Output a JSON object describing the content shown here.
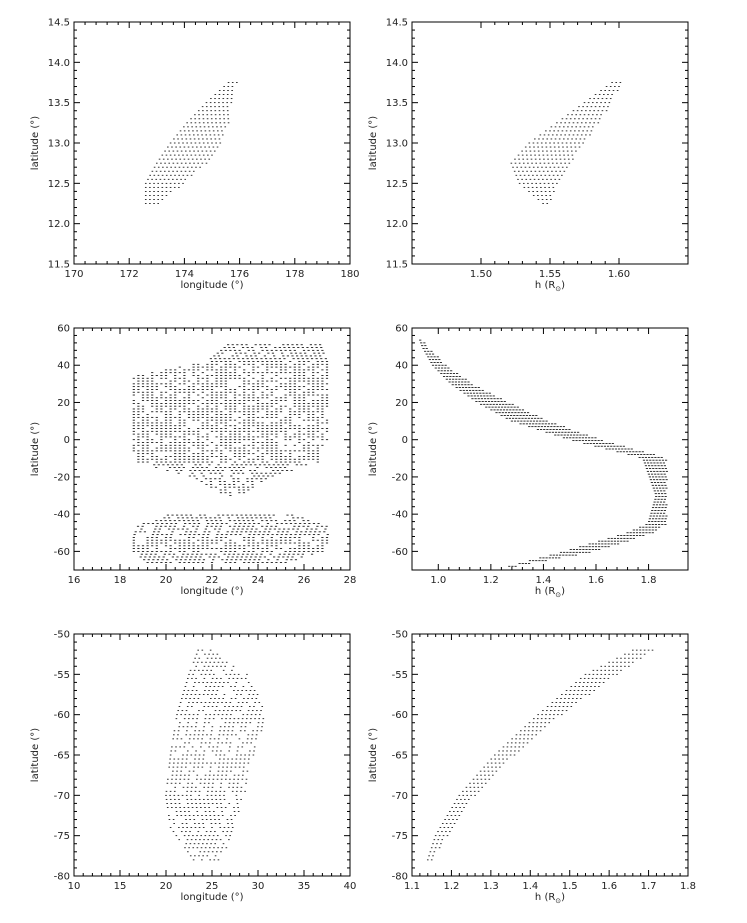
{
  "chart_data": [
    {
      "type": "scatter",
      "xlabel": "longitude (°)",
      "ylabel": "latitude (°)",
      "xlim": [
        170,
        180
      ],
      "ylim": [
        11.5,
        14.5
      ],
      "xticks": [
        "170",
        "172",
        "174",
        "176",
        "178",
        "180"
      ],
      "yticks": [
        "11.5",
        "12.0",
        "12.5",
        "13.0",
        "13.5",
        "14.0",
        "14.5"
      ],
      "series": [
        {
          "shape": "band",
          "ys": [
            12.25,
            12.5,
            12.75,
            13.0,
            13.25,
            13.5,
            13.75
          ],
          "xmins": [
            172.6,
            172.6,
            173.0,
            173.5,
            174.1,
            174.8,
            175.6
          ],
          "xmaxs": [
            173.1,
            174.0,
            174.8,
            175.3,
            175.6,
            175.7,
            175.9
          ],
          "ystep": 0.05,
          "xstep": 0.15
        }
      ]
    },
    {
      "type": "scatter",
      "xlabel": "h (R",
      "xlabel_sub": "⊙",
      "xlabel_suffix": ")",
      "ylabel": "latitude (°)",
      "xlim": [
        1.45,
        1.65
      ],
      "ylim": [
        11.5,
        14.5
      ],
      "xticks": [
        "1.50",
        "1.55",
        "1.60"
      ],
      "yticks": [
        "11.5",
        "12.0",
        "12.5",
        "13.0",
        "13.5",
        "14.0",
        "14.5"
      ],
      "series": [
        {
          "shape": "band",
          "ys": [
            12.25,
            12.5,
            12.75,
            13.0,
            13.25,
            13.5,
            13.75
          ],
          "xmins": [
            1.545,
            1.528,
            1.522,
            1.535,
            1.555,
            1.575,
            1.595
          ],
          "xmaxs": [
            1.55,
            1.555,
            1.565,
            1.575,
            1.585,
            1.595,
            1.602
          ],
          "ystep": 0.05,
          "xstep": 0.003
        }
      ]
    },
    {
      "type": "scatter",
      "xlabel": "longitude (°)",
      "ylabel": "latitude (°)",
      "xlim": [
        16,
        28
      ],
      "ylim": [
        -70,
        60
      ],
      "xticks": [
        "16",
        "18",
        "20",
        "22",
        "24",
        "26",
        "28"
      ],
      "yticks": [
        "-60",
        "-40",
        "-20",
        "0",
        "20",
        "40",
        "60"
      ],
      "series": [
        {
          "shape": "band",
          "ys": [
            -66,
            -60,
            -52,
            -46,
            -40
          ],
          "xmins": [
            19.2,
            18.6,
            18.6,
            18.8,
            20.2
          ],
          "xmaxs": [
            25.6,
            26.9,
            27.1,
            27.0,
            25.4
          ],
          "ystep": 1.5,
          "xstep": 0.2
        },
        {
          "shape": "band",
          "ys": [
            -30,
            -20,
            -12,
            0,
            20,
            34,
            42,
            52
          ],
          "xmins": [
            22.6,
            21.2,
            18.6,
            18.6,
            18.6,
            18.6,
            21.8,
            22.8
          ],
          "xmaxs": [
            23.2,
            24.6,
            26.6,
            27.0,
            27.1,
            27.1,
            27.0,
            26.8
          ],
          "ystep": 1.5,
          "xstep": 0.2
        }
      ]
    },
    {
      "type": "scatter",
      "xlabel": "h (R",
      "xlabel_sub": "⊙",
      "xlabel_suffix": ")",
      "ylabel": "latitude (°)",
      "xlim": [
        0.9,
        1.95
      ],
      "ylim": [
        -70,
        60
      ],
      "xticks": [
        "1.0",
        "1.2",
        "1.4",
        "1.6",
        "1.8"
      ],
      "yticks": [
        "-60",
        "-40",
        "-20",
        "0",
        "20",
        "40",
        "60"
      ],
      "series": [
        {
          "shape": "band",
          "ys": [
            -68,
            -60,
            -50,
            -45,
            -30,
            -10,
            0,
            10,
            20,
            30,
            40,
            50,
            54
          ],
          "xmins": [
            1.27,
            1.48,
            1.72,
            1.8,
            1.83,
            1.78,
            1.5,
            1.28,
            1.15,
            1.05,
            0.98,
            0.94,
            0.93
          ],
          "xmaxs": [
            1.3,
            1.6,
            1.82,
            1.87,
            1.87,
            1.87,
            1.62,
            1.42,
            1.27,
            1.13,
            1.03,
            0.96,
            0.94
          ],
          "ystep": 1.5,
          "xstep": 0.012
        }
      ]
    },
    {
      "type": "scatter",
      "xlabel": "longitude (°)",
      "ylabel": "latitude (°)",
      "xlim": [
        10,
        40
      ],
      "ylim": [
        -80,
        -50
      ],
      "xticks": [
        "10",
        "15",
        "20",
        "25",
        "30",
        "35",
        "40"
      ],
      "yticks": [
        "-80",
        "-75",
        "-70",
        "-65",
        "-60",
        "-55",
        "-50"
      ],
      "series": [
        {
          "shape": "band",
          "ys": [
            -78,
            -74,
            -70,
            -65,
            -60,
            -55,
            -52
          ],
          "xmins": [
            23.0,
            20.5,
            20.0,
            20.5,
            21.2,
            22.5,
            23.5
          ],
          "xmaxs": [
            26.0,
            27.5,
            28.5,
            29.5,
            31.0,
            29.0,
            25.0
          ],
          "ystep": 0.5,
          "xstep": 0.45
        }
      ]
    },
    {
      "type": "scatter",
      "xlabel": "h (R",
      "xlabel_sub": "⊙",
      "xlabel_suffix": ")",
      "ylabel": "latitude (°)",
      "xlim": [
        1.1,
        1.8
      ],
      "ylim": [
        -80,
        -50
      ],
      "xticks": [
        "1.1",
        "1.2",
        "1.3",
        "1.4",
        "1.5",
        "1.6",
        "1.7",
        "1.8"
      ],
      "yticks": [
        "-80",
        "-75",
        "-70",
        "-65",
        "-60",
        "-55",
        "-50"
      ],
      "series": [
        {
          "shape": "band",
          "ys": [
            -78,
            -75,
            -70,
            -65,
            -60,
            -55,
            -52
          ],
          "xmins": [
            1.14,
            1.16,
            1.22,
            1.31,
            1.42,
            1.54,
            1.66
          ],
          "xmaxs": [
            1.15,
            1.19,
            1.26,
            1.36,
            1.48,
            1.62,
            1.71
          ],
          "ystep": 0.5,
          "xstep": 0.01
        }
      ]
    }
  ]
}
